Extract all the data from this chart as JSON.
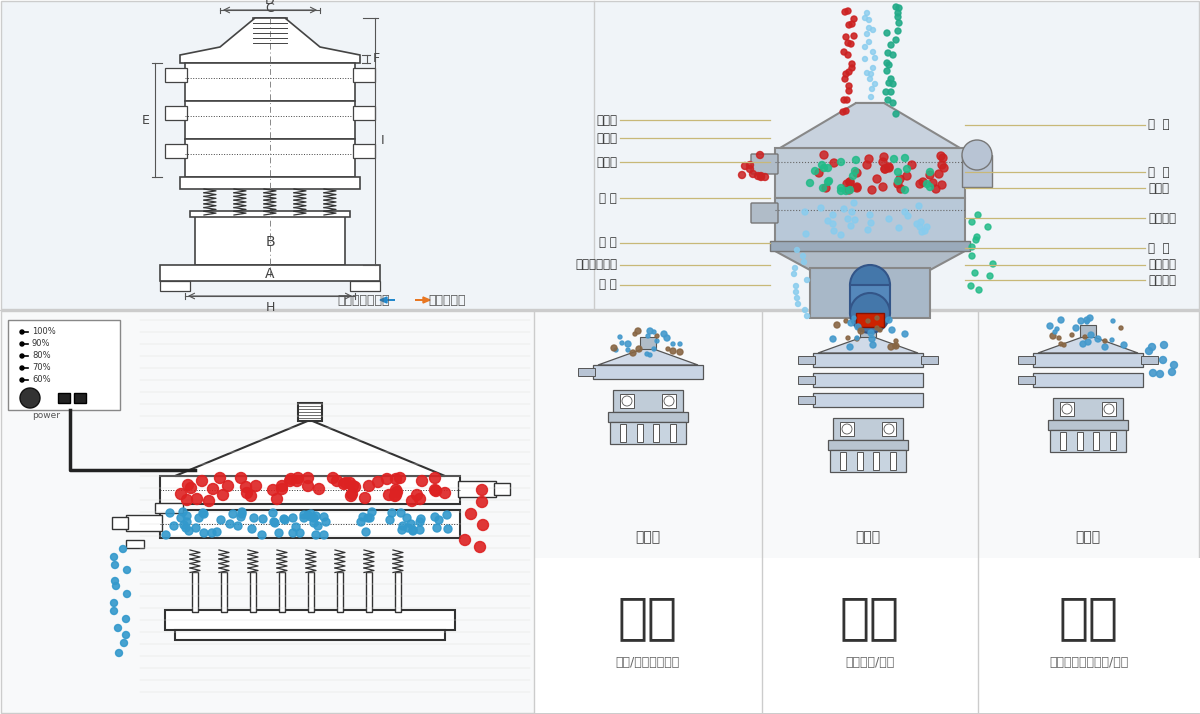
{
  "bg_color": "#ffffff",
  "top_panel_color": "#f5f5f5",
  "bottom_panel_color": "#f8f8f8",
  "border_color": "#cccccc",
  "right_labels_left": [
    "进料口",
    "防尘盖",
    "出料口",
    "束 环",
    "弹 簧",
    "运输固定螺栓",
    "机 座"
  ],
  "right_labels_right": [
    "筛  网",
    "网  架",
    "加重块",
    "上部重锤",
    "筛  盘",
    "振动电机",
    "下部重锤"
  ],
  "bottom_left_title": "分级",
  "bottom_mid_title": "过滤",
  "bottom_right_title": "除杂",
  "bottom_left_sub": "颗粒/粉末准确分级",
  "bottom_mid_sub": "去除异物/结块",
  "bottom_right_sub": "去除液体中的颗粒/异物",
  "bottom_left_machine": "单层式",
  "bottom_mid_machine": "三层式",
  "bottom_right_machine": "双层式",
  "controller_labels": [
    "100%",
    "90%",
    "80%",
    "70%",
    "60%"
  ],
  "controller_label": "power",
  "title_left": "外形尺寸示意图",
  "title_right": "结构示意图"
}
